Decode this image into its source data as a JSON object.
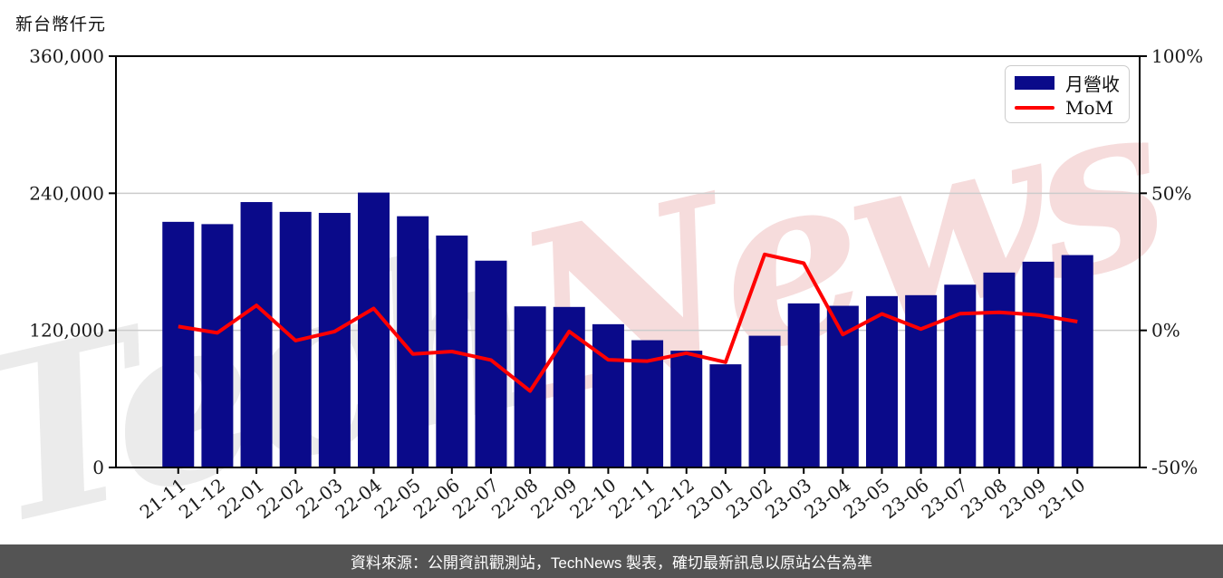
{
  "chart": {
    "unit_label": "新台幣仟元",
    "legend": {
      "bars": "月營收",
      "line": "MoM"
    },
    "watermark": {
      "part1": "Tech",
      "part2": "News"
    },
    "colors": {
      "bar": "#0a0a8a",
      "line": "#ff0000",
      "grid": "#cccccc",
      "axis": "#000000",
      "tick_text": "#1a1a1a",
      "watermark_gray": "#ebebeb",
      "watermark_pink": "#f6dcdc",
      "legend_border": "#cccccc",
      "footer_bg": "#545454",
      "footer_text": "#ffffff"
    }
  },
  "chart_data": {
    "type": "bar+line dual axis",
    "categories": [
      "21-11",
      "21-12",
      "22-01",
      "22-02",
      "22-03",
      "22-04",
      "22-05",
      "22-06",
      "22-07",
      "22-08",
      "22-09",
      "22-10",
      "22-11",
      "22-12",
      "23-01",
      "23-02",
      "23-03",
      "23-04",
      "23-05",
      "23-06",
      "23-07",
      "23-08",
      "23-09",
      "23-10"
    ],
    "series": [
      {
        "name": "月營收",
        "type": "bar",
        "axis": "left",
        "unit": "新台幣仟元",
        "values": [
          215000,
          213000,
          232300,
          223700,
          222800,
          240600,
          219900,
          203000,
          181000,
          141000,
          140500,
          125400,
          111400,
          102200,
          90300,
          115300,
          143600,
          141500,
          150000,
          150800,
          160000,
          170600,
          180100,
          185900
        ]
      },
      {
        "name": "MoM",
        "type": "line",
        "axis": "right",
        "unit": "%",
        "values": [
          1.4,
          -0.9,
          9.1,
          -3.7,
          -0.4,
          8.0,
          -8.6,
          -7.7,
          -10.8,
          -22.1,
          -0.4,
          -10.7,
          -11.2,
          -8.3,
          -11.6,
          27.7,
          24.5,
          -1.5,
          6.0,
          0.5,
          6.1,
          6.6,
          5.6,
          3.2
        ]
      }
    ],
    "left_axis": {
      "range": [
        0,
        360000
      ],
      "ticks": [
        0,
        120000,
        240000,
        360000
      ],
      "tick_labels": [
        "0",
        "120,000",
        "240,000",
        "360,000"
      ]
    },
    "right_axis": {
      "range": [
        -50,
        100
      ],
      "ticks": [
        -50,
        0,
        50,
        100
      ],
      "tick_labels": [
        "-50%",
        "0%",
        "50%",
        "100%"
      ]
    },
    "grid": "horizontal gridlines at inner left-axis ticks",
    "legend_position": "top-right inside plot"
  },
  "footer": {
    "text": "資料來源：公開資訊觀測站，TechNews 製表，確切最新訊息以原站公告為準"
  }
}
